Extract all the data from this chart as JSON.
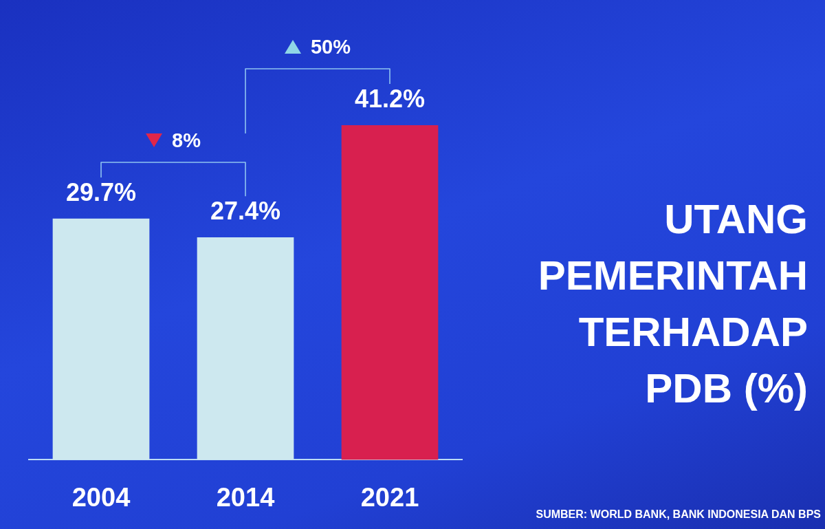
{
  "chart_data": {
    "type": "bar",
    "title": "UTANG PEMERINTAH TERHADAP PDB (%)",
    "categories": [
      "2004",
      "2014",
      "2021"
    ],
    "values": [
      29.7,
      27.4,
      41.2
    ],
    "colors": [
      "#cde8ef",
      "#cde8ef",
      "#d8204f"
    ],
    "value_labels": [
      "29.7%",
      "27.4%",
      "41.2%"
    ],
    "tick_labels": "x",
    "annotations": [
      "8%",
      "50%",
      "SUMBER: WORLD BANK, BANK INDONESIA DAN BPS"
    ]
  }
}
